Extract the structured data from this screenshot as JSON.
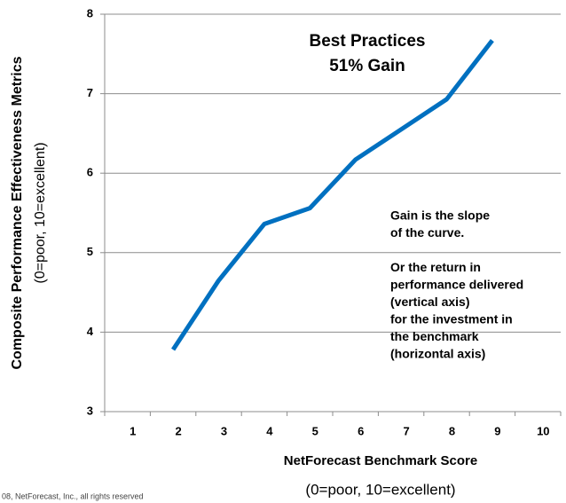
{
  "chart_data": {
    "type": "line",
    "x_label": "NetForecast Benchmark Score",
    "x_sublabel": "(0=poor, 10=excellent)",
    "y_label": "Composite Performance  Effectiveness Metrics",
    "y_sublabel": "(0=poor, 10=excellent)",
    "annotation_title": [
      "Best Practices",
      "51% Gain"
    ],
    "annotation_text": [
      "Gain is the slope",
      "of the curve.",
      "",
      "Or the return in",
      "performance delivered",
      "(vertical axis)",
      "for the investment in",
      "the benchmark",
      "(horizontal axis)"
    ],
    "footer": "08, NetForecast, Inc., all rights reserved",
    "x": [
      2,
      3,
      4,
      5,
      6,
      7,
      8,
      9
    ],
    "series": [
      {
        "color": "#0070c0",
        "values": [
          3.78,
          4.65,
          5.36,
          5.56,
          6.17,
          6.55,
          6.93,
          7.67
        ]
      }
    ],
    "xlim": [
      0.5,
      10.5
    ],
    "xticks": [
      1,
      2,
      3,
      4,
      5,
      6,
      7,
      8,
      9,
      10
    ],
    "ylim": [
      3,
      8
    ],
    "yticks": [
      3,
      4,
      5,
      6,
      7,
      8
    ],
    "grid": true
  }
}
